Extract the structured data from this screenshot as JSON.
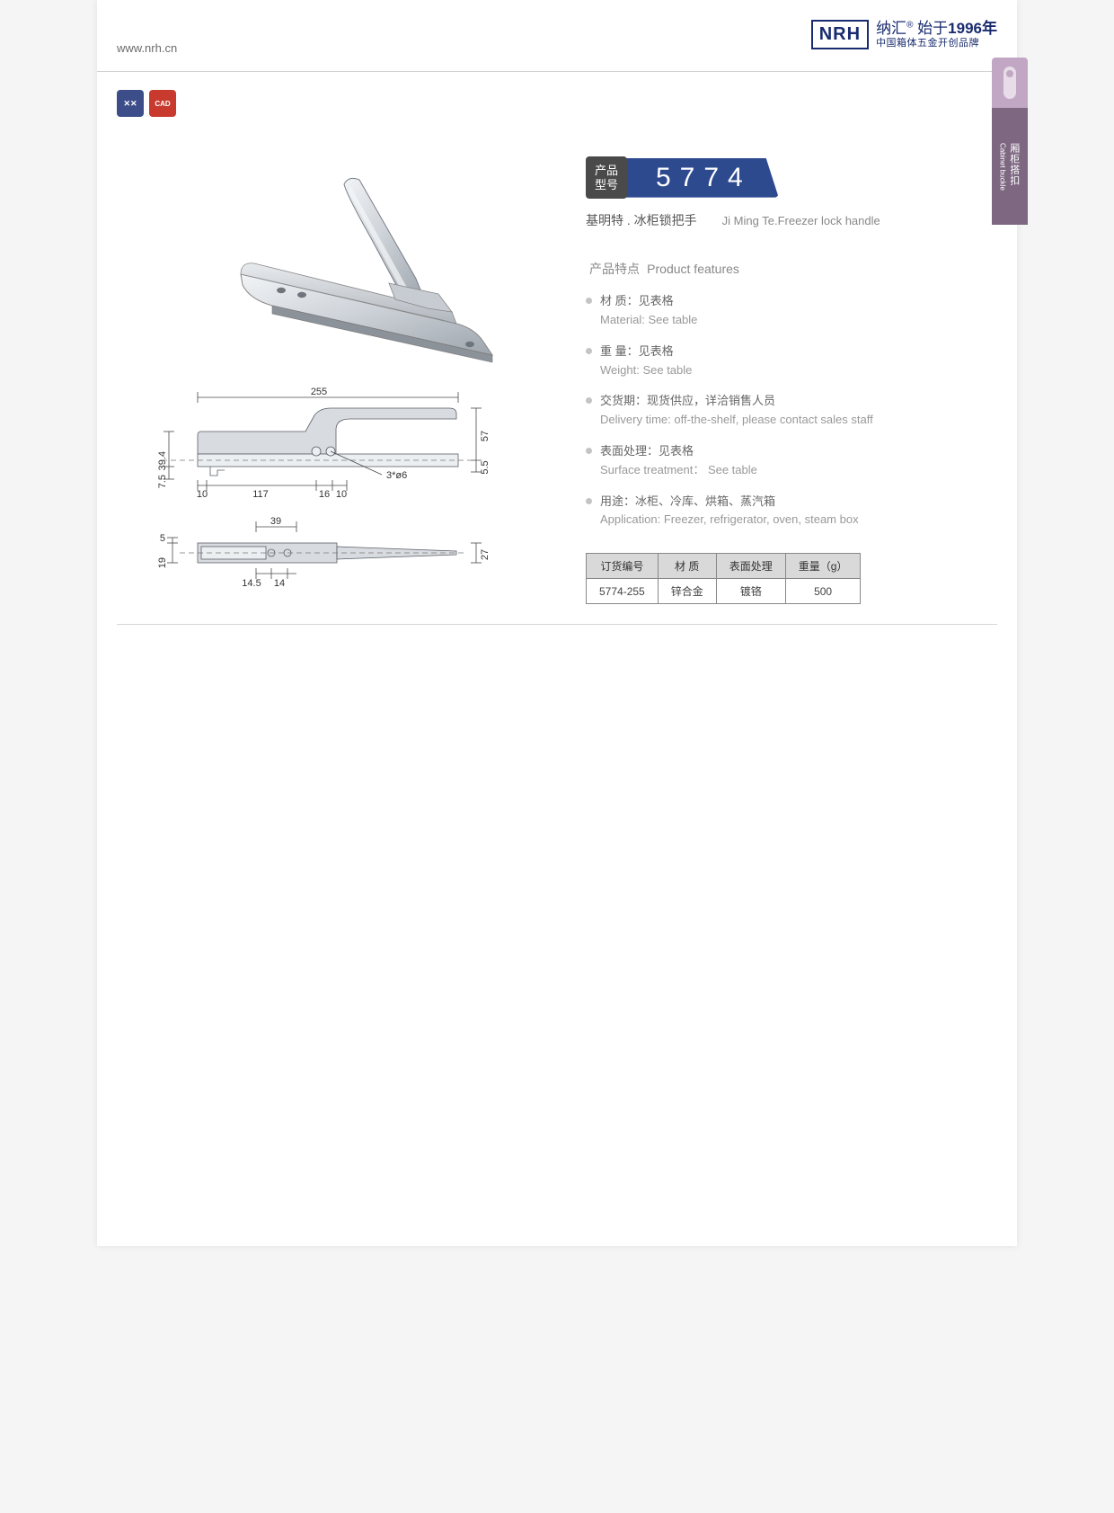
{
  "header": {
    "url": "www.nrh.cn",
    "logo_brand": "NRH",
    "logo_line1_a": "纳汇",
    "logo_line1_b": "始于",
    "logo_line1_year": "1996年",
    "logo_line2": "中国箱体五金开创品牌"
  },
  "side_tab": {
    "label_cn": "厢柜搭扣",
    "label_en": "Cabinet buckle"
  },
  "icons": {
    "icon1": "✕✕",
    "icon2": "CAD"
  },
  "product": {
    "model_label": "产品\n型号",
    "model_number": "5774",
    "subtitle_cn": "基明特 . 冰柜锁把手",
    "subtitle_en": "Ji Ming Te.Freezer lock handle"
  },
  "features": {
    "title_cn": "产品特点",
    "title_en": "Product features",
    "items": [
      {
        "cn": "材  质：见表格",
        "en": "Material: See table"
      },
      {
        "cn": "重  量：见表格",
        "en": "Weight: See table"
      },
      {
        "cn": "交货期：现货供应，详洽销售人员",
        "en": "Delivery time: off-the-shelf, please contact sales staff"
      },
      {
        "cn": "表面处理：见表格",
        "en": "Surface treatment： See table"
      },
      {
        "cn": "用途：冰柜、冷库、烘箱、蒸汽箱",
        "en": "Application: Freezer, refrigerator, oven, steam box"
      }
    ]
  },
  "spec_table": {
    "headers": [
      "订货编号",
      "材   质",
      "表面处理",
      "重量（g）"
    ],
    "rows": [
      [
        "5774-255",
        "锌合金",
        "镀铬",
        "500"
      ]
    ]
  },
  "drawing": {
    "dims": {
      "d255": "255",
      "d57": "57",
      "d39_4": "39.4",
      "d7_5": "7.5",
      "d5_5": "5.5",
      "d10a": "10",
      "d117": "117",
      "d16": "16",
      "d10b": "10",
      "d3phi6": "3*ø6",
      "d39": "39",
      "d5": "5",
      "d19": "19",
      "d27": "27",
      "d14_5": "14.5",
      "d14": "14"
    },
    "colors": {
      "part_fill": "#d8dce0",
      "part_light": "#eceff2",
      "part_dark": "#9aa1a9",
      "stroke": "#5a5f66",
      "dim_line": "#4a4a4a",
      "text": "#333333"
    }
  }
}
